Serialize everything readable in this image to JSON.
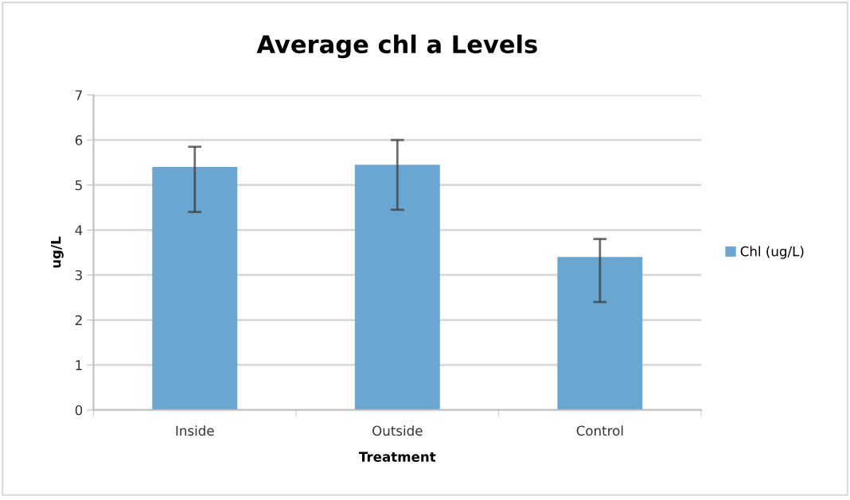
{
  "chart_data": {
    "type": "bar",
    "title": "Average chl a Levels",
    "xlabel": "Treatment",
    "ylabel": "ug/L",
    "categories": [
      "Inside",
      "Outside",
      "Control"
    ],
    "series": [
      {
        "name": "Chl (ug/L)",
        "color": "#6aa6d2",
        "values": [
          5.4,
          5.45,
          3.4
        ],
        "errors": [
          [
            4.4,
            5.85
          ],
          [
            4.45,
            6.0
          ],
          [
            2.4,
            3.8
          ]
        ]
      }
    ],
    "ylim": [
      0,
      7
    ],
    "yticks": [
      0,
      1,
      2,
      3,
      4,
      5,
      6,
      7
    ],
    "grid": "y",
    "legend": "right"
  }
}
